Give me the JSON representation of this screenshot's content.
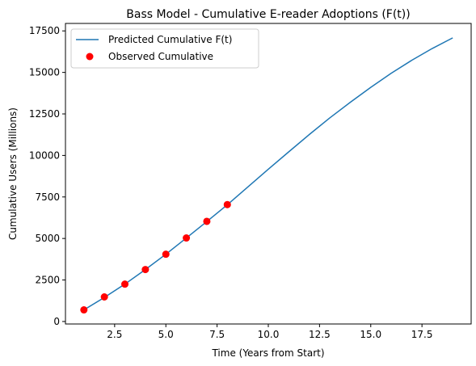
{
  "chart_data": {
    "type": "line",
    "title": "Bass Model - Cumulative E-reader Adoptions (F(t))",
    "xlabel": "Time (Years from Start)",
    "ylabel": "Cumulative Users (Millions)",
    "xlim": [
      0.1,
      19.9
    ],
    "ylim": [
      -150,
      17950
    ],
    "xticks": [
      2.5,
      5.0,
      7.5,
      10.0,
      12.5,
      15.0,
      17.5
    ],
    "xtick_labels": [
      "2.5",
      "5.0",
      "7.5",
      "10.0",
      "12.5",
      "15.0",
      "17.5"
    ],
    "yticks": [
      0,
      2500,
      5000,
      7500,
      10000,
      12500,
      15000,
      17500
    ],
    "ytick_labels": [
      "0",
      "2500",
      "5000",
      "7500",
      "10000",
      "12500",
      "15000",
      "17500"
    ],
    "grid": false,
    "legend_position": "top-left",
    "series": [
      {
        "name": "Predicted Cumulative F(t)",
        "kind": "line",
        "color": "#1f77b4",
        "x": [
          1,
          2,
          3,
          4,
          5,
          6,
          7,
          8,
          9,
          10,
          11,
          12,
          13,
          14,
          15,
          16,
          17,
          18,
          19
        ],
        "y": [
          700,
          1450,
          2250,
          3130,
          4050,
          5030,
          6020,
          7030,
          8100,
          9170,
          10220,
          11260,
          12260,
          13200,
          14100,
          14950,
          15730,
          16440,
          17080
        ]
      },
      {
        "name": "Observed Cumulative",
        "kind": "scatter",
        "color": "#ff0000",
        "x": [
          1,
          2,
          3,
          4,
          5,
          6,
          7,
          8
        ],
        "y": [
          700,
          1480,
          2250,
          3130,
          4050,
          5030,
          6030,
          7040
        ]
      }
    ]
  }
}
